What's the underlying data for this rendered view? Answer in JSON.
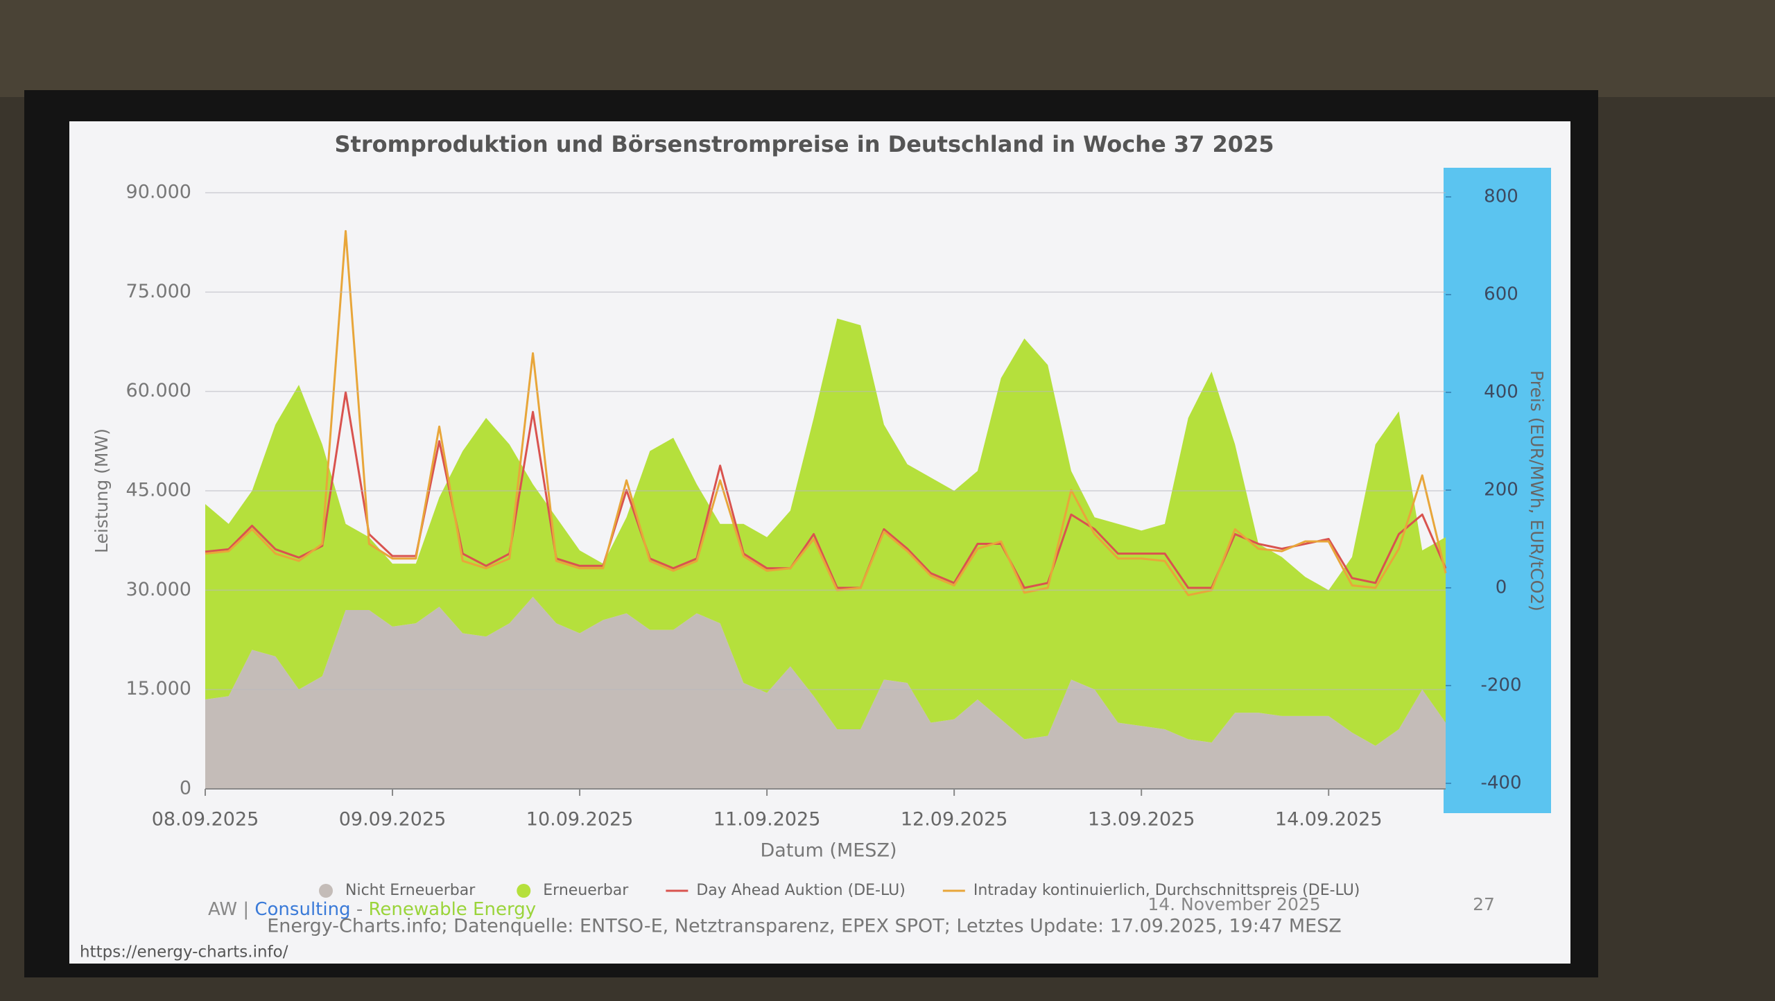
{
  "chart_data": {
    "type": "stacked-area-line",
    "title": "Stromproduktion und Börsenstrompreise in Deutschland in Woche 37 2025",
    "x_label": "Datum (MESZ)",
    "y_label": "Leistung (MW)",
    "y2_label": "Preis (EUR/MWh, EUR/tCO2)",
    "categories": [
      "08.09.2025",
      null,
      null,
      null,
      null,
      null,
      null,
      null,
      "09.09.2025",
      null,
      null,
      null,
      null,
      null,
      null,
      null,
      "10.09.2025",
      null,
      null,
      null,
      null,
      null,
      null,
      null,
      "11.09.2025",
      null,
      null,
      null,
      null,
      null,
      null,
      null,
      "12.09.2025",
      null,
      null,
      null,
      null,
      null,
      null,
      null,
      "13.09.2025",
      null,
      null,
      null,
      null,
      null,
      null,
      null,
      "14.09.2025",
      null,
      null,
      null,
      null,
      null
    ],
    "ylim": [
      0,
      90000
    ],
    "yticks": [
      0,
      {
        "value": 15000,
        "label": "15.000"
      },
      {
        "value": 30000,
        "label": "30.000"
      },
      {
        "value": 45000,
        "label": "45.000"
      },
      {
        "value": 60000,
        "label": "60.000"
      },
      {
        "value": 75000,
        "label": "75.000"
      },
      {
        "value": 90000,
        "label": "90.000"
      }
    ],
    "y2lim": [
      -400,
      800
    ],
    "y2ticks": [
      -400,
      -200,
      0,
      200,
      400,
      600,
      800
    ],
    "grid": true,
    "series": [
      {
        "name": "Nicht Erneuerbar",
        "color": "#c4bcb8",
        "stack": true,
        "values": [
          13500,
          14000,
          21000,
          20000,
          15000,
          17000,
          27000,
          27000,
          24500,
          25000,
          27500,
          23500,
          23000,
          25000,
          29000,
          25000,
          23500,
          25500,
          26500,
          24000,
          24000,
          26500,
          25000,
          16000,
          14500,
          18500,
          14000,
          9000,
          9000,
          16500,
          16000,
          10000,
          10500,
          13500,
          10500,
          7500,
          8000,
          16500,
          15000,
          10000,
          9500,
          9000,
          7500,
          7000,
          11500,
          11500,
          11000,
          11000,
          11000,
          8500,
          6500,
          9000,
          15000,
          10000
        ]
      },
      {
        "name": "Erneuerbar",
        "color": "#b5e03c",
        "stack": true,
        "values": [
          29500,
          26000,
          24000,
          35000,
          46000,
          35000,
          13000,
          11000,
          9500,
          9000,
          16500,
          27500,
          33000,
          27000,
          17000,
          16000,
          12500,
          8500,
          14500,
          27000,
          29000,
          19500,
          15000,
          24000,
          23500,
          23500,
          42000,
          62000,
          61000,
          38500,
          33000,
          37000,
          34500,
          34500,
          51500,
          60500,
          56000,
          31500,
          26000,
          30000,
          29500,
          31000,
          48500,
          56000,
          40500,
          25500,
          24000,
          21000,
          19000,
          26500,
          45500,
          48000,
          21000,
          28000
        ]
      },
      {
        "name": "Day Ahead Auktion (DE-LU)",
        "color": "#d9534f",
        "axis": "y2",
        "values": [
          74,
          79,
          127,
          79,
          62,
          86,
          400,
          110,
          65,
          65,
          300,
          70,
          45,
          70,
          360,
          60,
          45,
          45,
          200,
          60,
          40,
          60,
          250,
          70,
          40,
          40,
          110,
          0,
          0,
          120,
          80,
          30,
          10,
          90,
          90,
          0,
          10,
          150,
          120,
          70,
          70,
          70,
          0,
          0,
          110,
          90,
          80,
          90,
          100,
          20,
          10,
          110,
          150,
          40
        ]
      },
      {
        "name": "Intraday kontinuierlich, Durchschnittspreis (DE-LU)",
        "color": "#e8a63a",
        "axis": "y2",
        "values": [
          70,
          75,
          120,
          70,
          55,
          90,
          730,
          90,
          60,
          60,
          330,
          55,
          40,
          60,
          480,
          55,
          40,
          40,
          220,
          55,
          35,
          55,
          220,
          65,
          35,
          40,
          100,
          -5,
          0,
          115,
          75,
          25,
          5,
          80,
          95,
          -10,
          0,
          200,
          110,
          60,
          60,
          55,
          -15,
          -5,
          120,
          80,
          75,
          95,
          95,
          5,
          0,
          80,
          230,
          30
        ]
      }
    ]
  },
  "slide": {
    "brand_a": "AW |",
    "brand_b": "Consulting",
    "brand_c": "-",
    "brand_d": "Renewable Energy",
    "date": "14. November 2025",
    "page": "27",
    "source": "Energy-Charts.info; Datenquelle: ENTSO-E, Netztransparenz, EPEX SPOT; Letztes Update: 17.09.2025, 19:47 MESZ",
    "url": "https://energy-charts.info/"
  }
}
